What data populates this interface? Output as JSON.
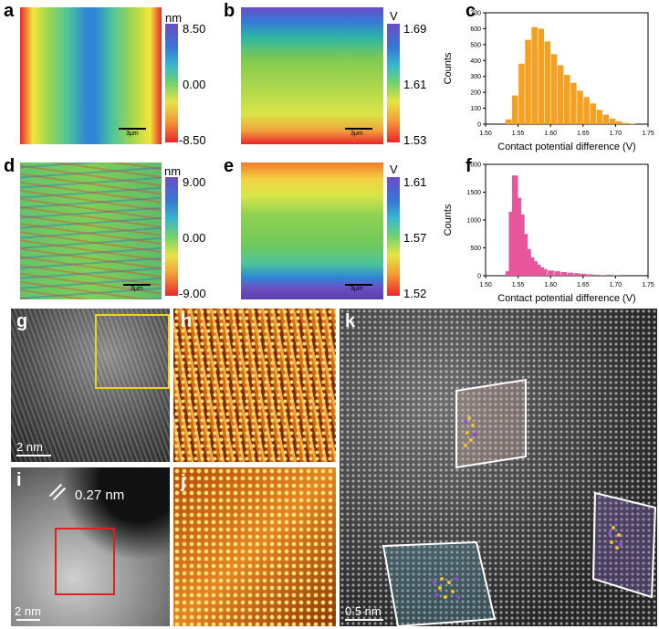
{
  "panel_labels": {
    "a": "a",
    "b": "b",
    "c": "c",
    "d": "d",
    "e": "e",
    "f": "f",
    "g": "g",
    "h": "h",
    "i": "i",
    "j": "j",
    "k": "k"
  },
  "afm_a": {
    "unit": "nm",
    "max": "8.50",
    "mid": "0.00",
    "min": "-8.50",
    "scale": "3μm"
  },
  "kpfm_b": {
    "unit": "V",
    "max": "1.69",
    "mid": "1.61",
    "min": "1.53",
    "scale": "3μm"
  },
  "afm_d": {
    "unit": "nm",
    "max": "9.00",
    "mid": "0.00",
    "min": "-9.00",
    "scale": "3μm"
  },
  "kpfm_e": {
    "unit": "V",
    "max": "1.61",
    "mid": "1.57",
    "min": "1.52",
    "scale": "3μm"
  },
  "tem": {
    "g_scale": "2 nm",
    "i_scale": "2 nm",
    "i_spacing": "0.27 nm",
    "k_scale": "0.5 nm"
  },
  "colors": {
    "hist_c": "#f5a020",
    "hist_f": "#e8559a",
    "box_g": "#f0d020",
    "box_i": "#e02020"
  },
  "chart_data": [
    {
      "type": "bar",
      "panel": "c",
      "xlabel": "Contact potential difference (V)",
      "ylabel": "Counts",
      "xlim": [
        1.5,
        1.75
      ],
      "ylim": [
        0,
        700
      ],
      "xticks": [
        "1.50",
        "1.55",
        "1.60",
        "1.65",
        "1.70",
        "1.75"
      ],
      "yticks": [
        "0",
        "100",
        "200",
        "300",
        "400",
        "500",
        "600",
        "700"
      ],
      "x": [
        1.535,
        1.545,
        1.555,
        1.565,
        1.575,
        1.585,
        1.595,
        1.605,
        1.615,
        1.625,
        1.635,
        1.645,
        1.655,
        1.665,
        1.675,
        1.685,
        1.695,
        1.705,
        1.715,
        1.725
      ],
      "values": [
        30,
        180,
        380,
        530,
        610,
        600,
        520,
        440,
        370,
        310,
        260,
        210,
        170,
        130,
        90,
        60,
        35,
        18,
        8,
        3
      ]
    },
    {
      "type": "bar",
      "panel": "f",
      "xlabel": "Contact potential difference (V)",
      "ylabel": "Counts",
      "xlim": [
        1.5,
        1.75
      ],
      "ylim": [
        0,
        2000
      ],
      "xticks": [
        "1.50",
        "1.55",
        "1.60",
        "1.65",
        "1.70",
        "1.75"
      ],
      "yticks": [
        "0",
        "500",
        "1000",
        "1500",
        "2000"
      ],
      "x": [
        1.535,
        1.54,
        1.545,
        1.55,
        1.555,
        1.56,
        1.565,
        1.57,
        1.575,
        1.58,
        1.585,
        1.59,
        1.6,
        1.61,
        1.62,
        1.63,
        1.64,
        1.65,
        1.66,
        1.68,
        1.7
      ],
      "values": [
        80,
        1150,
        1800,
        1400,
        1100,
        750,
        480,
        330,
        260,
        200,
        150,
        120,
        95,
        80,
        65,
        55,
        45,
        35,
        25,
        12,
        5
      ]
    }
  ]
}
